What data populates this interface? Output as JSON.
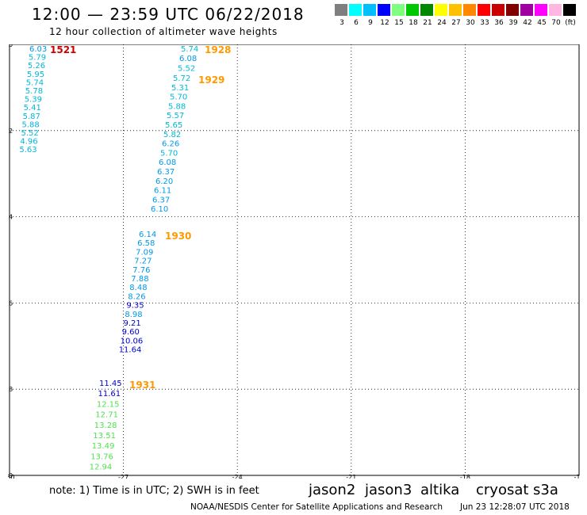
{
  "header": {
    "title": "12:00 — 23:59 UTC 06/22/2018",
    "subtitle": "12 hour collection of altimeter wave heights"
  },
  "scale": {
    "labels": [
      "3",
      "6",
      "9",
      "12",
      "15",
      "18",
      "21",
      "24",
      "27",
      "30",
      "33",
      "36",
      "39",
      "42",
      "45",
      "70",
      "(ft)"
    ],
    "colors": [
      "#7f7f7f",
      "#00ffff",
      "#00bfff",
      "#0000ff",
      "#7fff7f",
      "#00c800",
      "#008800",
      "#ffff00",
      "#ffc000",
      "#ff8800",
      "#ff0000",
      "#c80000",
      "#800000",
      "#a000a0",
      "#ff00ff",
      "#ffb6e0",
      "#000000"
    ]
  },
  "axes": {
    "x_ticks": [
      "-30",
      "-27",
      "-24",
      "-21",
      "-18",
      "-15"
    ],
    "y_ticks": [
      "-20",
      "-22",
      "-24",
      "-26",
      "-28",
      "-30"
    ]
  },
  "passes": [
    {
      "label": "1521",
      "color": "#cc0000",
      "values": [
        "6.03",
        "5.79",
        "5.26",
        "5.95",
        "5.74",
        "5.78",
        "5.39",
        "5.41",
        "5.87",
        "5.88",
        "5.52",
        "4.96",
        "5.63"
      ]
    },
    {
      "label": "1928",
      "color": "#ff9900",
      "values": [
        "5.74",
        "6.08",
        "5.52"
      ]
    },
    {
      "label": "1929",
      "color": "#ff9900",
      "values": [
        "5.72",
        "5.31",
        "5.70",
        "5.88",
        "5.57",
        "5.65",
        "5.82",
        "6.26",
        "5.70",
        "6.08",
        "6.37",
        "6.20",
        "6.11",
        "6.37",
        "6.10"
      ]
    },
    {
      "label": "1930",
      "color": "#ff9900",
      "values": [
        "6.14",
        "6.58",
        "7.09",
        "7.27",
        "7.76",
        "7.88",
        "8.48",
        "8.26",
        "9.35",
        "8.98",
        "9.21",
        "9.60",
        "10.06",
        "11.64"
      ]
    },
    {
      "label": "1931",
      "color": "#ff9900",
      "values": [
        "11.45",
        "11.61",
        "12.15",
        "12.71",
        "13.28",
        "13.51",
        "13.49",
        "13.76",
        "12.94"
      ]
    }
  ],
  "notes": {
    "note": "note: 1) Time is in UTC; 2) SWH is in feet"
  },
  "satellites": [
    {
      "name": "jason2",
      "color": "#0000cc"
    },
    {
      "name": "jason3",
      "color": "#009900"
    },
    {
      "name": "altika",
      "color": "#ff9900"
    },
    {
      "name": "cryosat",
      "color": "#cc0000"
    },
    {
      "name": "s3a",
      "color": "#cc0000"
    }
  ],
  "footer": {
    "source": "NOAA/NESDIS Center for Satellite Applications and Research",
    "timestamp": "Jun 23 12:28:07 UTC 2018"
  }
}
